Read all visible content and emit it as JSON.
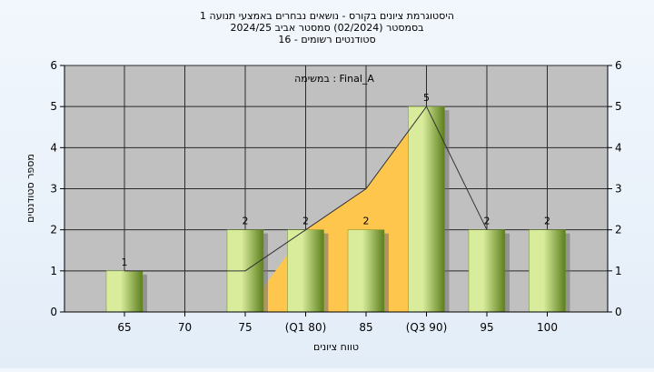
{
  "chart_data": {
    "type": "bar",
    "title_lines": [
      "היסטוגרמת ציונים בקורס - נושאים נבחרים באמצעי תנועה 1",
      "בסמסטר  (02/2024)  סמסטר אביב 2024/25",
      "סטודנטים רשומים - 16"
    ],
    "annotation": "במשימה : Final_A",
    "xlabel": "טווח ציונים",
    "ylabel": "מספר סטודנטים",
    "categories": [
      "65",
      "70",
      "75",
      "(Q1 80)",
      "85",
      "(Q3 90)",
      "95",
      "100"
    ],
    "values": [
      1,
      0,
      2,
      2,
      2,
      5,
      2,
      2
    ],
    "data_labels": [
      "1",
      "",
      "2",
      "2",
      "2",
      "5",
      "2",
      "2"
    ],
    "ylim": [
      0,
      6
    ],
    "yticks": [
      "0",
      "1",
      "2",
      "3",
      "4",
      "5",
      "6"
    ],
    "grid": true,
    "secondary_y_axis": true,
    "overlays": {
      "area_between_quartiles": {
        "label_x": [
          "75",
          "(Q1 80)",
          "85",
          "(Q3 90)"
        ],
        "values": [
          0,
          2,
          3,
          5
        ]
      },
      "line": {
        "x": [
          "65",
          "75",
          "(Q1 80)",
          "85",
          "(Q3 90)",
          "95"
        ],
        "values": [
          1,
          1,
          2,
          3,
          5,
          2
        ]
      }
    },
    "colors": {
      "plot_background": "#c0c0c0",
      "bar_light": "#d8ec9c",
      "bar_dark": "#5c7f1c",
      "area_fill": "#ffc64e",
      "line": "#333333"
    }
  }
}
